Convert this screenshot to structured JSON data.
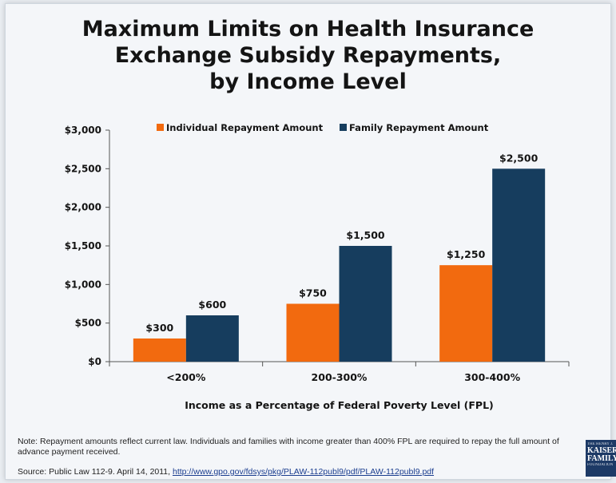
{
  "title_lines": [
    "Maximum Limits on Health Insurance",
    "Exchange Subsidy Repayments,",
    "by Income Level"
  ],
  "note": "Note: Repayment amounts reflect current law. Individuals and families with income greater than 400% FPL are required to repay the full amount of advance payment received.",
  "source": {
    "prefix": "Source: Public Law 112-9. April 14, 2011, ",
    "link": "http://www.gpo.gov/fdsys/pkg/PLAW-112publ9/pdf/PLAW-112publ9.pdf"
  },
  "logo": {
    "line1": "THE HENRY J.",
    "line2": "KAISER",
    "line3": "FAMILY",
    "line4": "FOUNDATION"
  },
  "colors": {
    "individual": "#f26a0f",
    "family": "#163d5e",
    "axis": "#555555",
    "text": "#141414"
  },
  "chart_data": {
    "type": "bar",
    "categories": [
      "<200%",
      "200-300%",
      "300-400%"
    ],
    "series": [
      {
        "name": "Individual Repayment Amount",
        "values": [
          300,
          750,
          1250
        ],
        "labels": [
          "$300",
          "$750",
          "$1,250"
        ]
      },
      {
        "name": "Family Repayment Amount",
        "values": [
          600,
          1500,
          2500
        ],
        "labels": [
          "$600",
          "$1,500",
          "$2,500"
        ]
      }
    ],
    "xlabel": "Income as a Percentage of Federal Poverty Level (FPL)",
    "ylabel": "",
    "ylim": [
      0,
      3000
    ],
    "yticks": [
      0,
      500,
      1000,
      1500,
      2000,
      2500,
      3000
    ],
    "ytick_labels": [
      "$0",
      "$500",
      "$1,000",
      "$1,500",
      "$2,000",
      "$2,500",
      "$3,000"
    ],
    "grid": false,
    "legend": "top"
  }
}
